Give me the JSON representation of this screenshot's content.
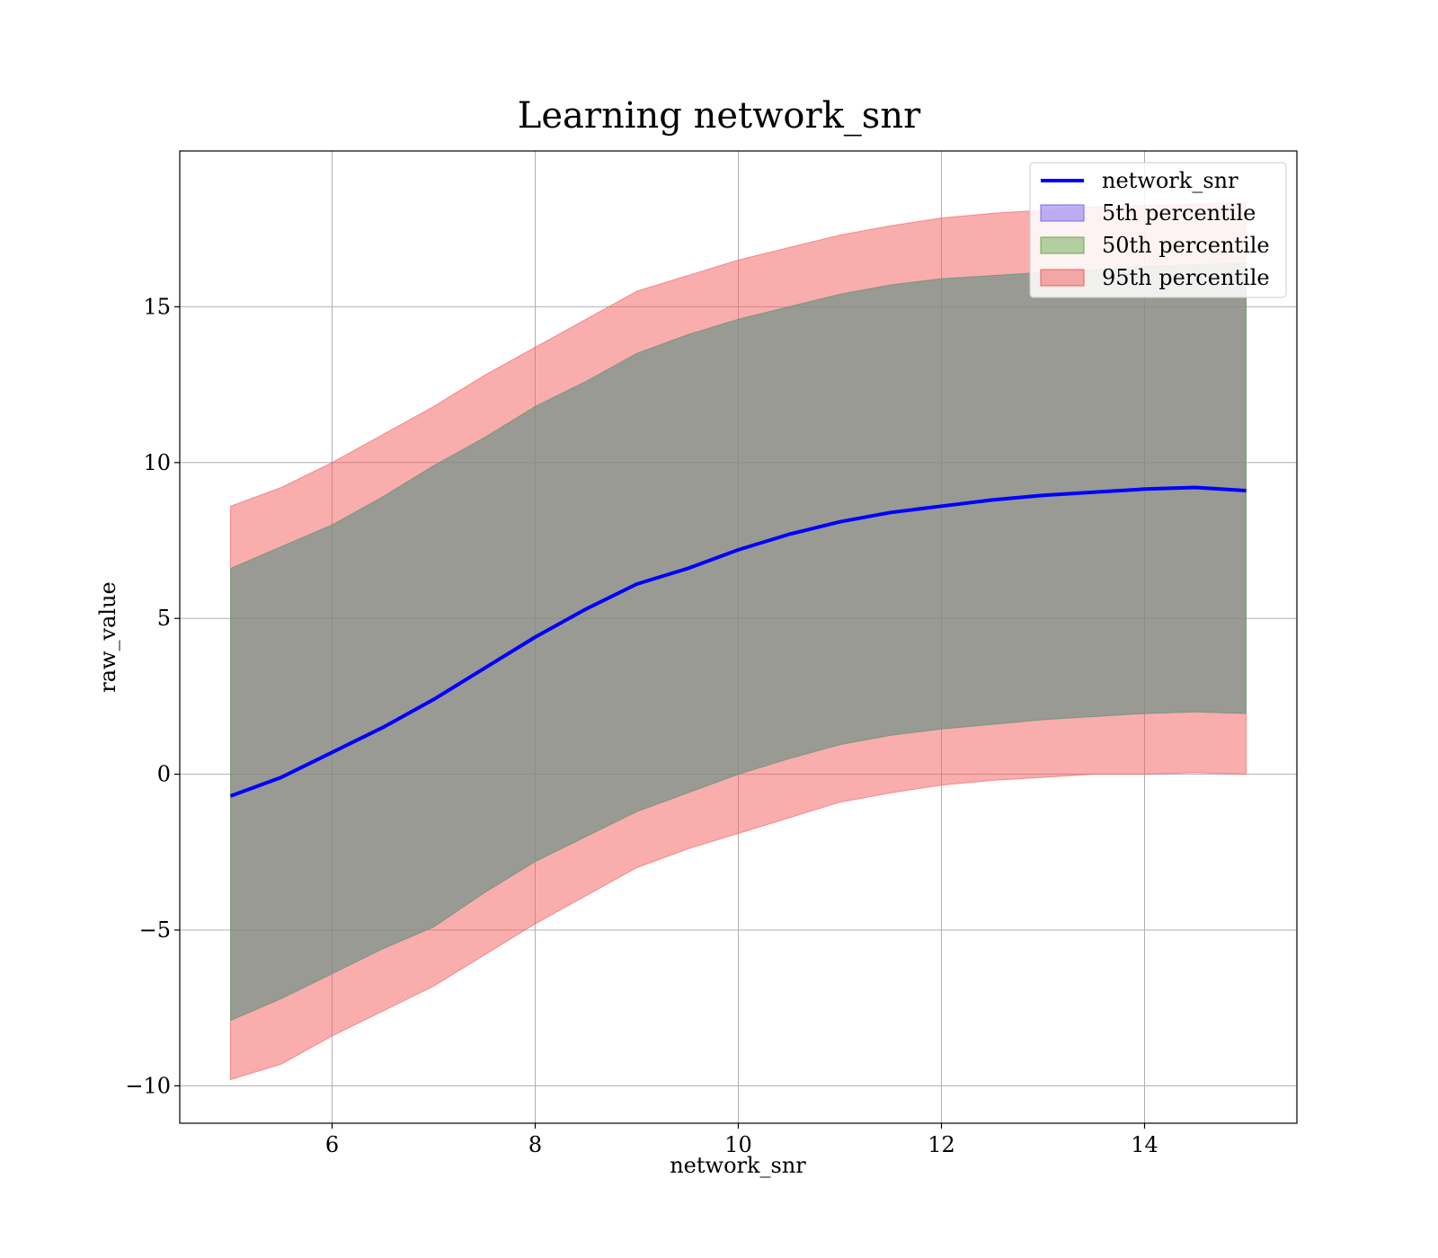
{
  "chart_data": {
    "type": "area",
    "title": "Learning network_snr",
    "xlabel": "network_snr",
    "ylabel": "raw_value",
    "xlim": [
      4.5,
      15.5
    ],
    "ylim": [
      -11.2,
      20.0
    ],
    "xticks": [
      6,
      8,
      10,
      12,
      14
    ],
    "xtick_labels": [
      "6",
      "8",
      "10",
      "12",
      "14"
    ],
    "yticks": [
      -10,
      -5,
      0,
      5,
      10,
      15
    ],
    "ytick_labels": [
      "−10",
      "−5",
      "0",
      "5",
      "10",
      "15"
    ],
    "grid": true,
    "legend_position": "top-right",
    "x": [
      5.0,
      5.5,
      6.0,
      6.5,
      7.0,
      7.5,
      8.0,
      8.5,
      9.0,
      9.5,
      10.0,
      10.5,
      11.0,
      11.5,
      12.0,
      12.5,
      13.0,
      13.5,
      14.0,
      14.5,
      15.0
    ],
    "series": [
      {
        "name": "network_snr",
        "kind": "line",
        "color": "#0000ff",
        "values": [
          -0.7,
          -0.1,
          0.7,
          1.5,
          2.4,
          3.4,
          4.4,
          5.3,
          6.1,
          6.6,
          7.2,
          7.7,
          8.1,
          8.4,
          8.6,
          8.8,
          8.95,
          9.05,
          9.15,
          9.2,
          9.1
        ]
      },
      {
        "name": "5th percentile",
        "kind": "band",
        "color": "#7b68ee",
        "lower": [
          -7.9,
          -7.2,
          -6.4,
          -5.6,
          -4.9,
          -3.8,
          -2.8,
          -2.0,
          -1.2,
          -0.6,
          0.0,
          0.5,
          0.95,
          1.25,
          1.45,
          1.6,
          1.75,
          1.85,
          1.95,
          2.0,
          1.95
        ],
        "upper": [
          6.6,
          7.3,
          8.0,
          8.9,
          9.9,
          10.8,
          11.8,
          12.6,
          13.5,
          14.1,
          14.6,
          15.0,
          15.4,
          15.7,
          15.9,
          16.0,
          16.1,
          16.2,
          16.3,
          16.35,
          16.4
        ]
      },
      {
        "name": "50th percentile",
        "kind": "band",
        "color": "#6aa84f",
        "lower": [
          -7.9,
          -7.2,
          -6.4,
          -5.6,
          -4.9,
          -3.8,
          -2.8,
          -2.0,
          -1.2,
          -0.6,
          0.0,
          0.5,
          0.95,
          1.25,
          1.45,
          1.6,
          1.75,
          1.85,
          1.95,
          2.0,
          1.95
        ],
        "upper": [
          6.6,
          7.3,
          8.0,
          8.9,
          9.9,
          10.8,
          11.8,
          12.6,
          13.5,
          14.1,
          14.6,
          15.0,
          15.4,
          15.7,
          15.9,
          16.0,
          16.1,
          16.2,
          16.3,
          16.35,
          16.4
        ]
      },
      {
        "name": "95th percentile",
        "kind": "band",
        "color": "#f45c5c",
        "lower": [
          -9.8,
          -9.3,
          -8.4,
          -7.6,
          -6.8,
          -5.8,
          -4.8,
          -3.9,
          -3.0,
          -2.4,
          -1.9,
          -1.4,
          -0.9,
          -0.6,
          -0.35,
          -0.2,
          -0.1,
          0.0,
          0.0,
          0.05,
          0.0
        ],
        "upper": [
          8.6,
          9.2,
          10.0,
          10.9,
          11.8,
          12.8,
          13.7,
          14.6,
          15.5,
          16.0,
          16.5,
          16.9,
          17.3,
          17.6,
          17.85,
          18.0,
          18.1,
          18.2,
          18.25,
          18.3,
          18.35
        ]
      }
    ]
  }
}
